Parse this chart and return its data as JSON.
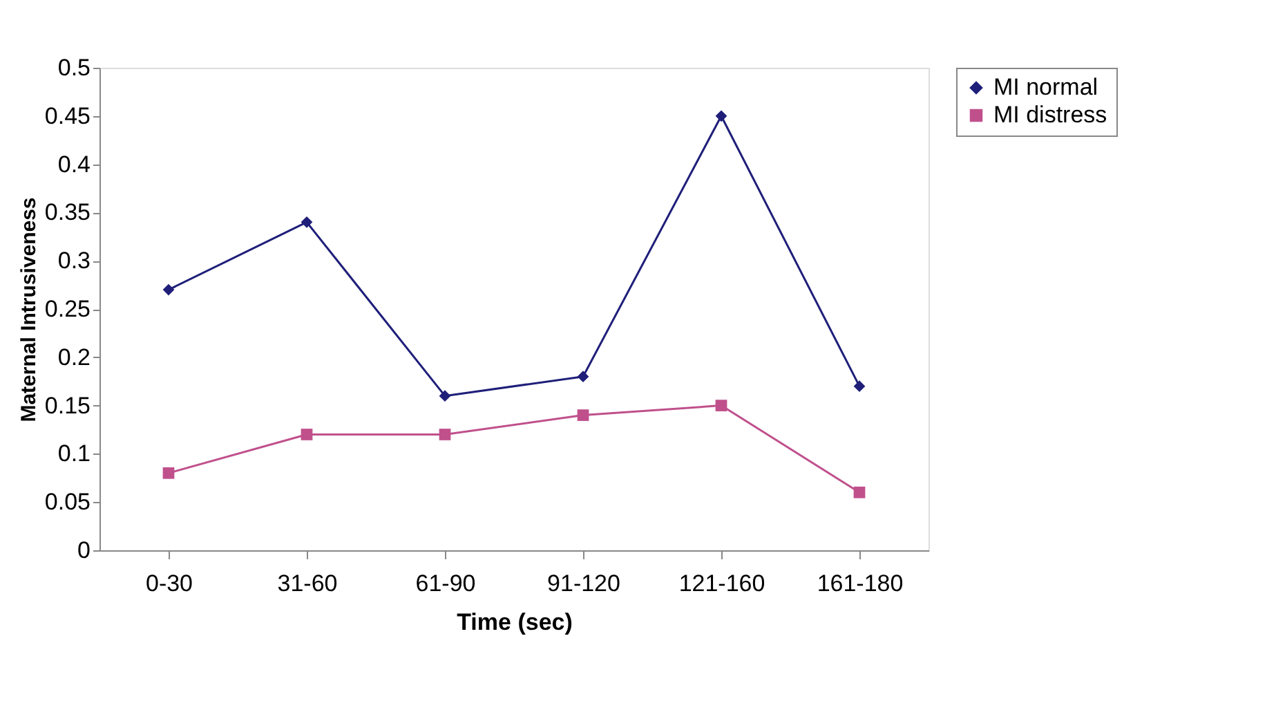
{
  "chart_data": {
    "type": "line",
    "xlabel": "Time (sec)",
    "ylabel": "Maternal Intrusiveness",
    "categories": [
      "0-30",
      "31-60",
      "61-90",
      "91-120",
      "121-160",
      "161-180"
    ],
    "ylim": [
      0,
      0.5
    ],
    "yticks": [
      0,
      0.05,
      0.1,
      0.15,
      0.2,
      0.25,
      0.3,
      0.35,
      0.4,
      0.45,
      0.5
    ],
    "grid": false,
    "legend": "right",
    "line_style": "solid",
    "series": [
      {
        "name": "MI normal",
        "color": "#1f1f7a",
        "marker": "diamond",
        "values": [
          0.27,
          0.34,
          0.16,
          0.18,
          0.45,
          0.17
        ]
      },
      {
        "name": "MI distress",
        "color": "#c0508c",
        "marker": "square",
        "values": [
          0.08,
          0.12,
          0.12,
          0.14,
          0.15,
          0.06
        ]
      }
    ]
  }
}
